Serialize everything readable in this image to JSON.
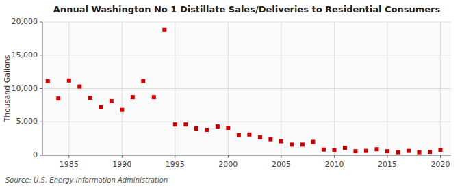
{
  "chart_data": {
    "type": "scatter",
    "title": "Annual Washington No 1 Distillate Sales/Deliveries to Residential Consumers",
    "ylabel": "Thousand Gallons",
    "annotations": [
      "Source: U.S. Energy Information Administration"
    ],
    "x": [
      1983,
      1984,
      1985,
      1986,
      1987,
      1988,
      1989,
      1990,
      1991,
      1992,
      1993,
      1994,
      1995,
      1996,
      1997,
      1998,
      1999,
      2000,
      2001,
      2002,
      2003,
      2004,
      2005,
      2006,
      2007,
      2008,
      2009,
      2010,
      2011,
      2012,
      2013,
      2014,
      2015,
      2016,
      2017,
      2018,
      2019,
      2020
    ],
    "values": [
      11100,
      8500,
      11200,
      10300,
      8600,
      7200,
      8100,
      6800,
      8700,
      11100,
      8700,
      18800,
      4600,
      4600,
      4000,
      3800,
      4300,
      4100,
      3000,
      3100,
      2700,
      2400,
      2100,
      1600,
      1600,
      2000,
      850,
      750,
      1100,
      600,
      650,
      900,
      600,
      450,
      650,
      450,
      500,
      800
    ],
    "color": "#cc0000",
    "marker": "square",
    "grid": true,
    "xlim": [
      1982.5,
      2021
    ],
    "ylim": [
      0,
      20000
    ],
    "xticks": [
      1985,
      1990,
      1995,
      2000,
      2005,
      2010,
      2015,
      2020
    ],
    "yticks": [
      0,
      {
        "value": 5000,
        "label": "5,000"
      },
      {
        "value": 10000,
        "label": "10,000"
      },
      {
        "value": 15000,
        "label": "15,000"
      },
      {
        "value": 20000,
        "label": "20,000"
      }
    ]
  }
}
